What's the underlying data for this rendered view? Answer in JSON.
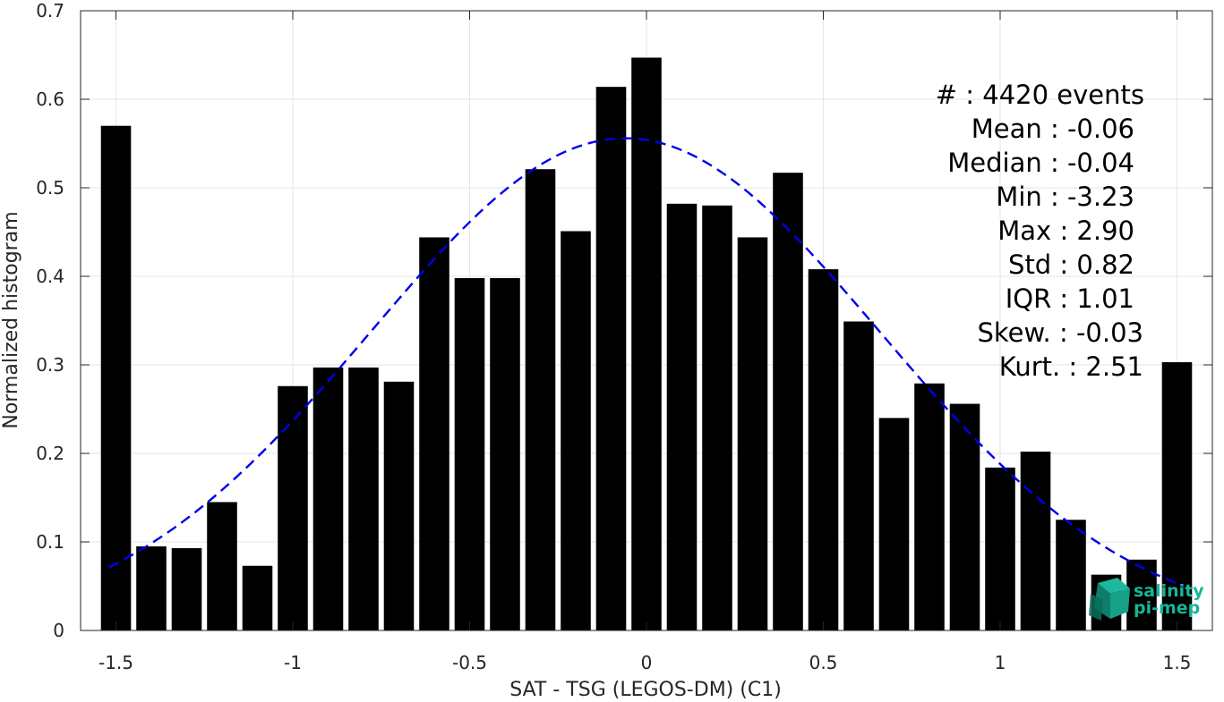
{
  "chart_data": {
    "type": "bar",
    "xlabel": "SAT - TSG (LEGOS-DM) (C1)",
    "ylabel": "Normalized histogram",
    "xlim": [
      -1.6,
      1.6
    ],
    "ylim": [
      0,
      0.7
    ],
    "x_ticks": [
      -1.5,
      -1,
      -0.5,
      0,
      0.5,
      1,
      1.5
    ],
    "x_tick_labels": [
      "-1.5",
      "-1",
      "-0.5",
      "0",
      "0.5",
      "1",
      "1.5"
    ],
    "y_ticks": [
      0,
      0.1,
      0.2,
      0.3,
      0.4,
      0.5,
      0.6,
      0.7
    ],
    "y_tick_labels": [
      "0",
      "0.1",
      "0.2",
      "0.3",
      "0.4",
      "0.5",
      "0.6",
      "0.7"
    ],
    "grid": true,
    "bar_width": 0.085,
    "bar_color": "#000000",
    "bins": [
      -1.5,
      -1.4,
      -1.3,
      -1.2,
      -1.1,
      -1.0,
      -0.9,
      -0.8,
      -0.7,
      -0.6,
      -0.5,
      -0.4,
      -0.3,
      -0.2,
      -0.1,
      0.0,
      0.1,
      0.2,
      0.3,
      0.4,
      0.5,
      0.6,
      0.7,
      0.8,
      0.9,
      1.0,
      1.1,
      1.2,
      1.3,
      1.4,
      1.5
    ],
    "values": [
      0.57,
      0.095,
      0.093,
      0.145,
      0.073,
      0.276,
      0.297,
      0.297,
      0.281,
      0.444,
      0.398,
      0.398,
      0.521,
      0.451,
      0.614,
      0.647,
      0.482,
      0.48,
      0.444,
      0.517,
      0.408,
      0.349,
      0.24,
      0.279,
      0.256,
      0.184,
      0.202,
      0.125,
      0.063,
      0.08,
      0.303
    ],
    "fit": {
      "mean": -0.06,
      "std": 0.72,
      "amplitude": 0.556,
      "x_range": [
        -1.52,
        1.52
      ],
      "color": "#0000ee",
      "style": "dashed"
    },
    "annotation": [
      "#  : 4420 events",
      "Mean : -0.06",
      "Median : -0.04",
      "Min : -3.23",
      "Max : 2.90",
      "Std : 0.82",
      "IQR : 1.01",
      "Skew. : -0.03",
      "Kurt. : 2.51"
    ]
  },
  "logo": {
    "line1": "salinity",
    "line2": "pi-mep",
    "color": "#17b59a",
    "icon": "cube-logo-icon"
  }
}
